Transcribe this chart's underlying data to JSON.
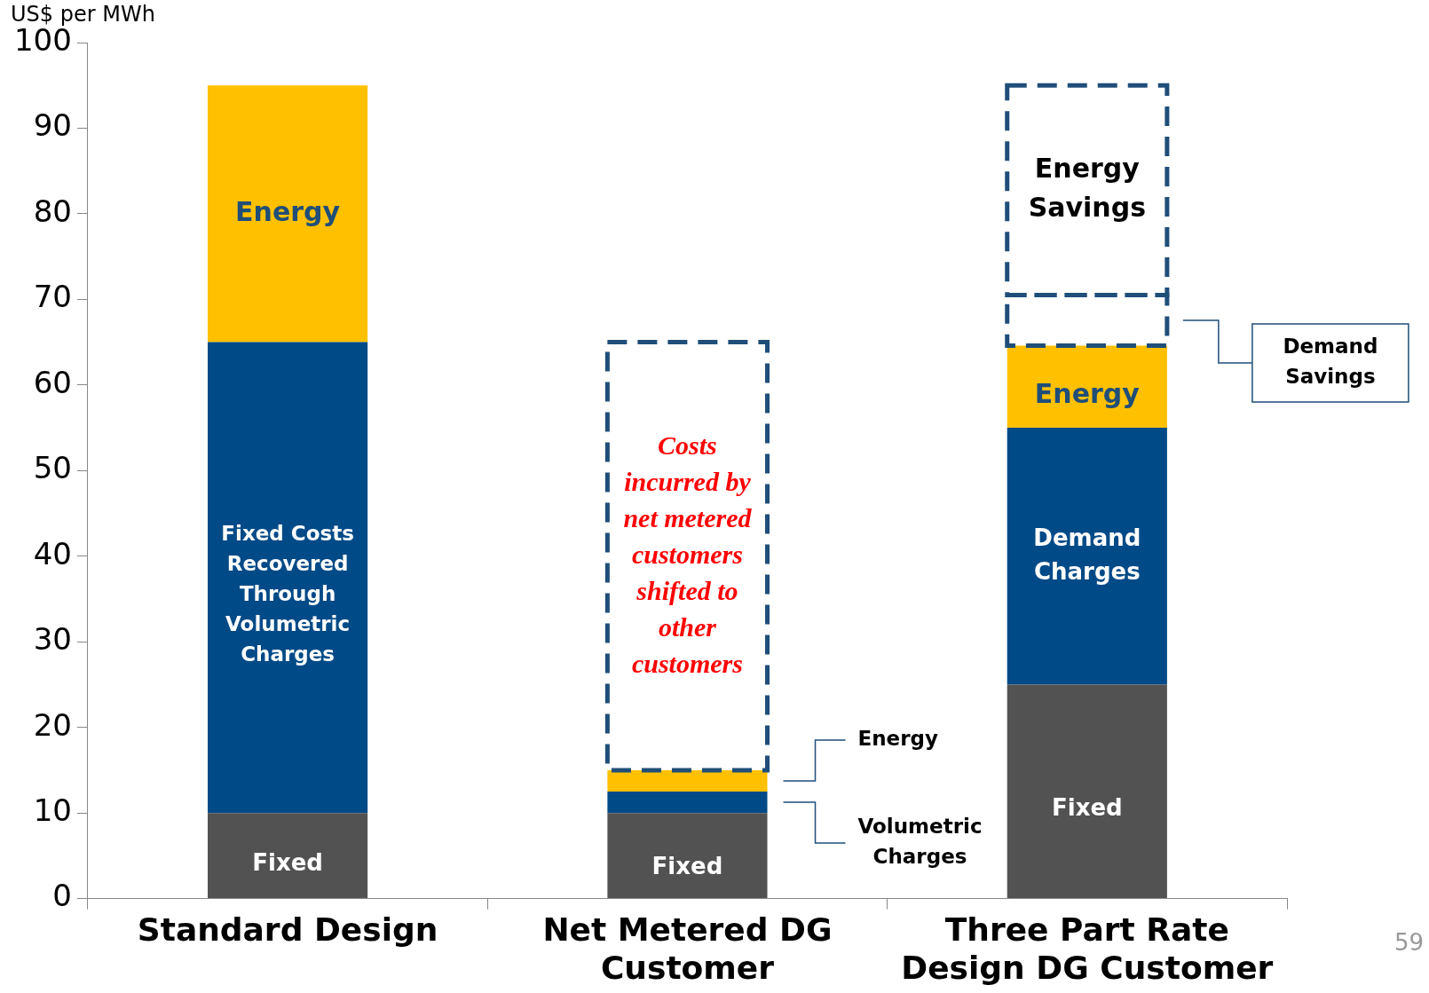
{
  "chart_data": {
    "type": "bar",
    "stacked": true,
    "ylabel": "US$ per MWh",
    "categories": [
      "Standard Design",
      "Net Metered DG Customer",
      "Three Part Rate Design DG Customer"
    ],
    "series": [
      {
        "color": "#525252",
        "values": [
          10,
          10,
          25
        ]
      },
      {
        "color": "#004a87",
        "values": [
          55,
          2.5,
          30
        ]
      },
      {
        "color": "#ffc000",
        "values": [
          30,
          2.5,
          9.6
        ]
      },
      {
        "color": "#1f4e79",
        "values": [
          null,
          50,
          5.9
        ],
        "line_style": "dashed"
      },
      {
        "color": "#1f4e79",
        "values": [
          null,
          null,
          24.5
        ],
        "line_style": "dashed"
      }
    ],
    "ylim": [
      0,
      100
    ],
    "yticks": [
      0,
      10,
      20,
      30,
      40,
      50,
      60,
      70,
      80,
      90,
      100
    ],
    "grid": false,
    "legend": false,
    "annotations": [
      "Energy",
      "Fixed Costs Recovered Through Volumetric Charges",
      "Fixed",
      "Fixed",
      "Costs incurred by net metered customers shifted to other customers",
      "Energy",
      "Volumetric Charges",
      "Energy",
      "Demand Charges",
      "Fixed",
      "Energy Savings",
      "Demand Savings",
      "59"
    ]
  }
}
